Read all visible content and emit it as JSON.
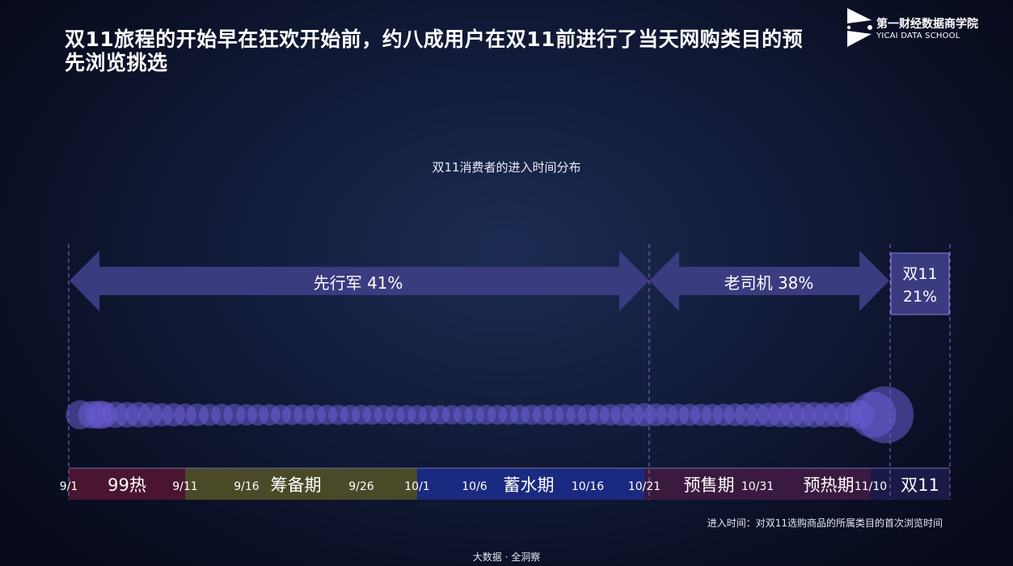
{
  "title": "双11旅程的开始早在狂欢开始前，约八成用户在双11前进行了当天网购类目的预先浏览挑选",
  "logo": {
    "name": "第一财经数据商学院",
    "sub": "YICAI DATA SCHOOL"
  },
  "footnote": "进入时间：对双11选购商品的所属类目的首次浏览时间",
  "source": "大数据 · 全洞察",
  "colors": {
    "arrow": "#3b3b80",
    "bubble": "#6a5cd3",
    "box_border": "#8c7fe0",
    "divider": "#8e6ad8",
    "phase_99": "#4a1530",
    "phase_prep": "#4a4a28",
    "phase_store": "#1a2a80",
    "phase_presale": "#3a1a3e",
    "phase_preheat": "#3a1a40",
    "phase_double11": "#1a1a46"
  },
  "chart_data": {
    "type": "bubble-timeline",
    "title": "双11消费者的进入时间分布",
    "segments": [
      {
        "label": "先行军 41%",
        "name": "先行军",
        "percent": 41,
        "start": "9/1",
        "end": "10/21"
      },
      {
        "label": "老司机 38%",
        "name": "老司机",
        "percent": 38,
        "start": "10/21",
        "end": "11/10"
      },
      {
        "label_line1": "双11",
        "label_line2": "21%",
        "name": "双11",
        "percent": 21,
        "start": "11/11",
        "end": "11/11"
      }
    ],
    "ticks": [
      "9/1",
      "9/11",
      "9/16",
      "9/26",
      "10/1",
      "10/6",
      "10/16",
      "10/21",
      "10/31",
      "11/10"
    ],
    "phases": [
      {
        "label": "99热",
        "start": "9/1",
        "end": "9/11"
      },
      {
        "label": "筹备期",
        "start": "9/11",
        "end": "10/1"
      },
      {
        "label": "蓄水期",
        "start": "10/1",
        "end": "10/21"
      },
      {
        "label": "预售期",
        "start": "10/21",
        "end": "10/31"
      },
      {
        "label": "预热期",
        "start": "10/31",
        "end": "11/10"
      },
      {
        "label": "双11",
        "start": "11/10",
        "end": "11/11"
      }
    ],
    "bubbles": [
      {
        "date": "9/1",
        "size": 0.8
      },
      {
        "date": "9/2",
        "size": 0.82
      },
      {
        "date": "9/3",
        "size": 0.78
      },
      {
        "date": "9/4",
        "size": 0.76
      },
      {
        "date": "9/5",
        "size": 0.74
      },
      {
        "date": "9/6",
        "size": 0.72
      },
      {
        "date": "9/7",
        "size": 0.72
      },
      {
        "date": "9/8",
        "size": 0.7
      },
      {
        "date": "9/9",
        "size": 0.66
      },
      {
        "date": "9/10",
        "size": 0.66
      },
      {
        "date": "9/11",
        "size": 0.64
      },
      {
        "date": "9/12",
        "size": 0.64
      },
      {
        "date": "9/13",
        "size": 0.62
      },
      {
        "date": "9/14",
        "size": 0.62
      },
      {
        "date": "9/15",
        "size": 0.62
      },
      {
        "date": "9/16",
        "size": 0.6
      },
      {
        "date": "9/17",
        "size": 0.6
      },
      {
        "date": "9/18",
        "size": 0.6
      },
      {
        "date": "9/19",
        "size": 0.58
      },
      {
        "date": "9/20",
        "size": 0.58
      },
      {
        "date": "9/21",
        "size": 0.58
      },
      {
        "date": "9/22",
        "size": 0.58
      },
      {
        "date": "9/23",
        "size": 0.57
      },
      {
        "date": "9/24",
        "size": 0.57
      },
      {
        "date": "9/25",
        "size": 0.56
      },
      {
        "date": "9/26",
        "size": 0.56
      },
      {
        "date": "9/27",
        "size": 0.56
      },
      {
        "date": "9/28",
        "size": 0.55
      },
      {
        "date": "9/29",
        "size": 0.55
      },
      {
        "date": "9/30",
        "size": 0.55
      },
      {
        "date": "10/1",
        "size": 0.55
      },
      {
        "date": "10/2",
        "size": 0.55
      },
      {
        "date": "10/3",
        "size": 0.55
      },
      {
        "date": "10/4",
        "size": 0.55
      },
      {
        "date": "10/5",
        "size": 0.55
      },
      {
        "date": "10/6",
        "size": 0.56
      },
      {
        "date": "10/7",
        "size": 0.56
      },
      {
        "date": "10/8",
        "size": 0.56
      },
      {
        "date": "10/9",
        "size": 0.56
      },
      {
        "date": "10/10",
        "size": 0.56
      },
      {
        "date": "10/11",
        "size": 0.57
      },
      {
        "date": "10/12",
        "size": 0.57
      },
      {
        "date": "10/13",
        "size": 0.57
      },
      {
        "date": "10/14",
        "size": 0.58
      },
      {
        "date": "10/15",
        "size": 0.58
      },
      {
        "date": "10/16",
        "size": 0.58
      },
      {
        "date": "10/17",
        "size": 0.59
      },
      {
        "date": "10/18",
        "size": 0.6
      },
      {
        "date": "10/19",
        "size": 0.62
      },
      {
        "date": "10/20",
        "size": 0.64
      },
      {
        "date": "10/21",
        "size": 0.66
      },
      {
        "date": "10/22",
        "size": 0.64
      },
      {
        "date": "10/23",
        "size": 0.62
      },
      {
        "date": "10/24",
        "size": 0.62
      },
      {
        "date": "10/25",
        "size": 0.62
      },
      {
        "date": "10/26",
        "size": 0.62
      },
      {
        "date": "10/27",
        "size": 0.62
      },
      {
        "date": "10/28",
        "size": 0.63
      },
      {
        "date": "10/29",
        "size": 0.64
      },
      {
        "date": "10/30",
        "size": 0.65
      },
      {
        "date": "10/31",
        "size": 0.66
      },
      {
        "date": "11/1",
        "size": 0.68
      },
      {
        "date": "11/2",
        "size": 0.7
      },
      {
        "date": "11/3",
        "size": 0.72
      },
      {
        "date": "11/4",
        "size": 0.72
      },
      {
        "date": "11/5",
        "size": 0.72
      },
      {
        "date": "11/6",
        "size": 0.7
      },
      {
        "date": "11/7",
        "size": 0.7
      },
      {
        "date": "11/8",
        "size": 0.72
      },
      {
        "date": "11/9",
        "size": 0.82
      },
      {
        "date": "11/10",
        "size": 1.3
      },
      {
        "date": "11/11",
        "size": 1.6
      }
    ]
  }
}
